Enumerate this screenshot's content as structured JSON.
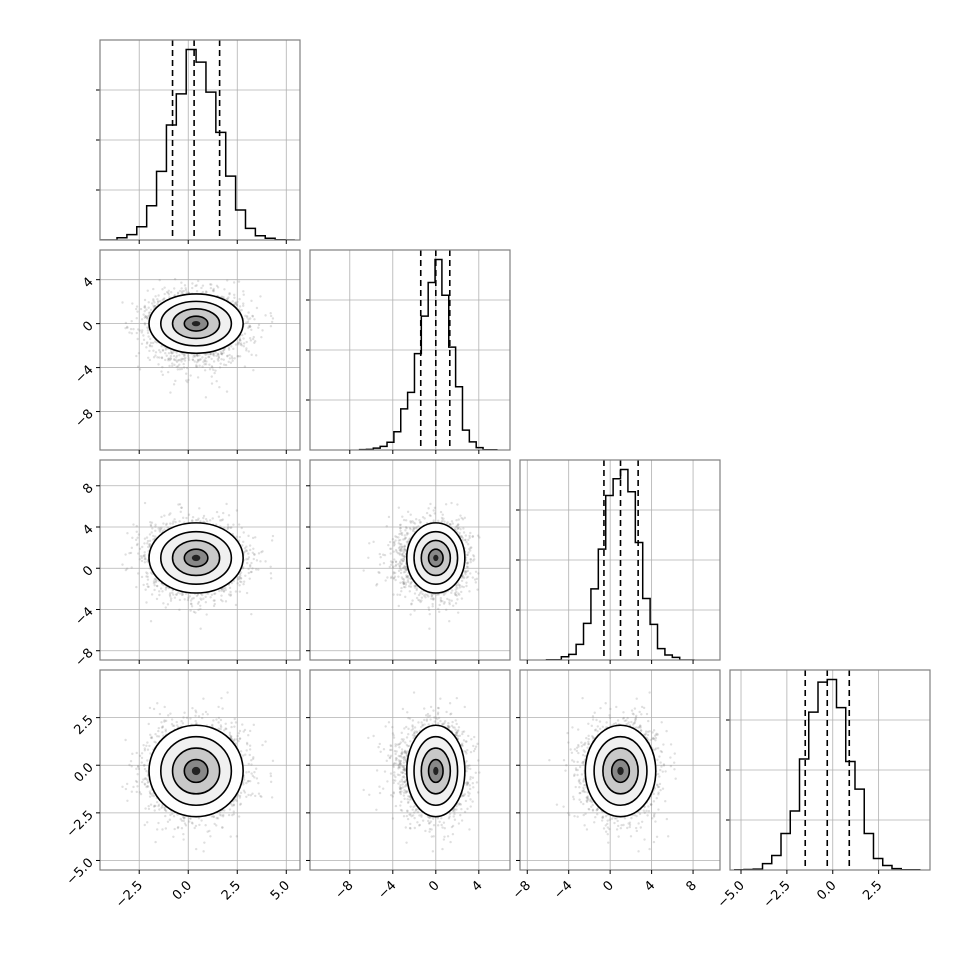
{
  "chart_data": {
    "type": "corner",
    "title": "",
    "grid": true,
    "parameters": [
      {
        "range": [
          -4.5,
          5.7
        ],
        "ticks": [
          -2.5,
          0.0,
          2.5,
          5.0
        ],
        "tick_labels": [
          "−2.5",
          "0.0",
          "2.5",
          "5.0"
        ],
        "mean": 0.4,
        "std": 1.2,
        "quantiles": [
          -0.8,
          0.3,
          1.6
        ]
      },
      {
        "range": [
          -11.7,
          6.9
        ],
        "ticks": [
          -8,
          -4,
          0,
          4
        ],
        "tick_labels": [
          "−8",
          "−4",
          "0",
          "4"
        ],
        "mean": 0.0,
        "std": 1.35,
        "quantiles": [
          -1.4,
          0.0,
          1.3
        ]
      },
      {
        "range": [
          -8.7,
          10.6
        ],
        "ticks": [
          -8,
          -4,
          0,
          4,
          8
        ],
        "tick_labels": [
          "−8",
          "−4",
          "0",
          "4",
          "8"
        ],
        "mean": 1.0,
        "std": 1.7,
        "quantiles": [
          -0.6,
          1.0,
          2.7
        ]
      },
      {
        "range": [
          -5.6,
          5.3
        ],
        "ticks": [
          -5.0,
          -2.5,
          0.0,
          2.5
        ],
        "tick_labels": [
          "−5.0",
          "−2.5",
          "0.0",
          "2.5"
        ],
        "mean": -0.3,
        "std": 1.2,
        "quantiles": [
          -1.5,
          -0.3,
          0.9
        ]
      }
    ],
    "ylims_2d": {
      "1": [
        -11.5,
        6.7
      ],
      "2": [
        -8.9,
        10.5
      ],
      "3": [
        -5.5,
        5.0
      ]
    },
    "ytick_labels_2d": {
      "1": [
        "4",
        "0",
        "−4",
        "−8"
      ],
      "2": [
        "8",
        "4",
        "0",
        "−4",
        "−8"
      ],
      "3": [
        "2.5",
        "0.0",
        "−2.5",
        "−5.0"
      ]
    },
    "ytick_values_2d": {
      "1": [
        4,
        0,
        -4,
        -8
      ],
      "2": [
        8,
        4,
        0,
        -4,
        -8
      ],
      "3": [
        2.5,
        0.0,
        -2.5,
        -5.0
      ]
    },
    "histogram_bins": 20,
    "samples": 5000,
    "colors": {
      "line": "#000000",
      "grid": "#b0b0b0",
      "scatter": "#808080",
      "frame": "#808080"
    }
  }
}
